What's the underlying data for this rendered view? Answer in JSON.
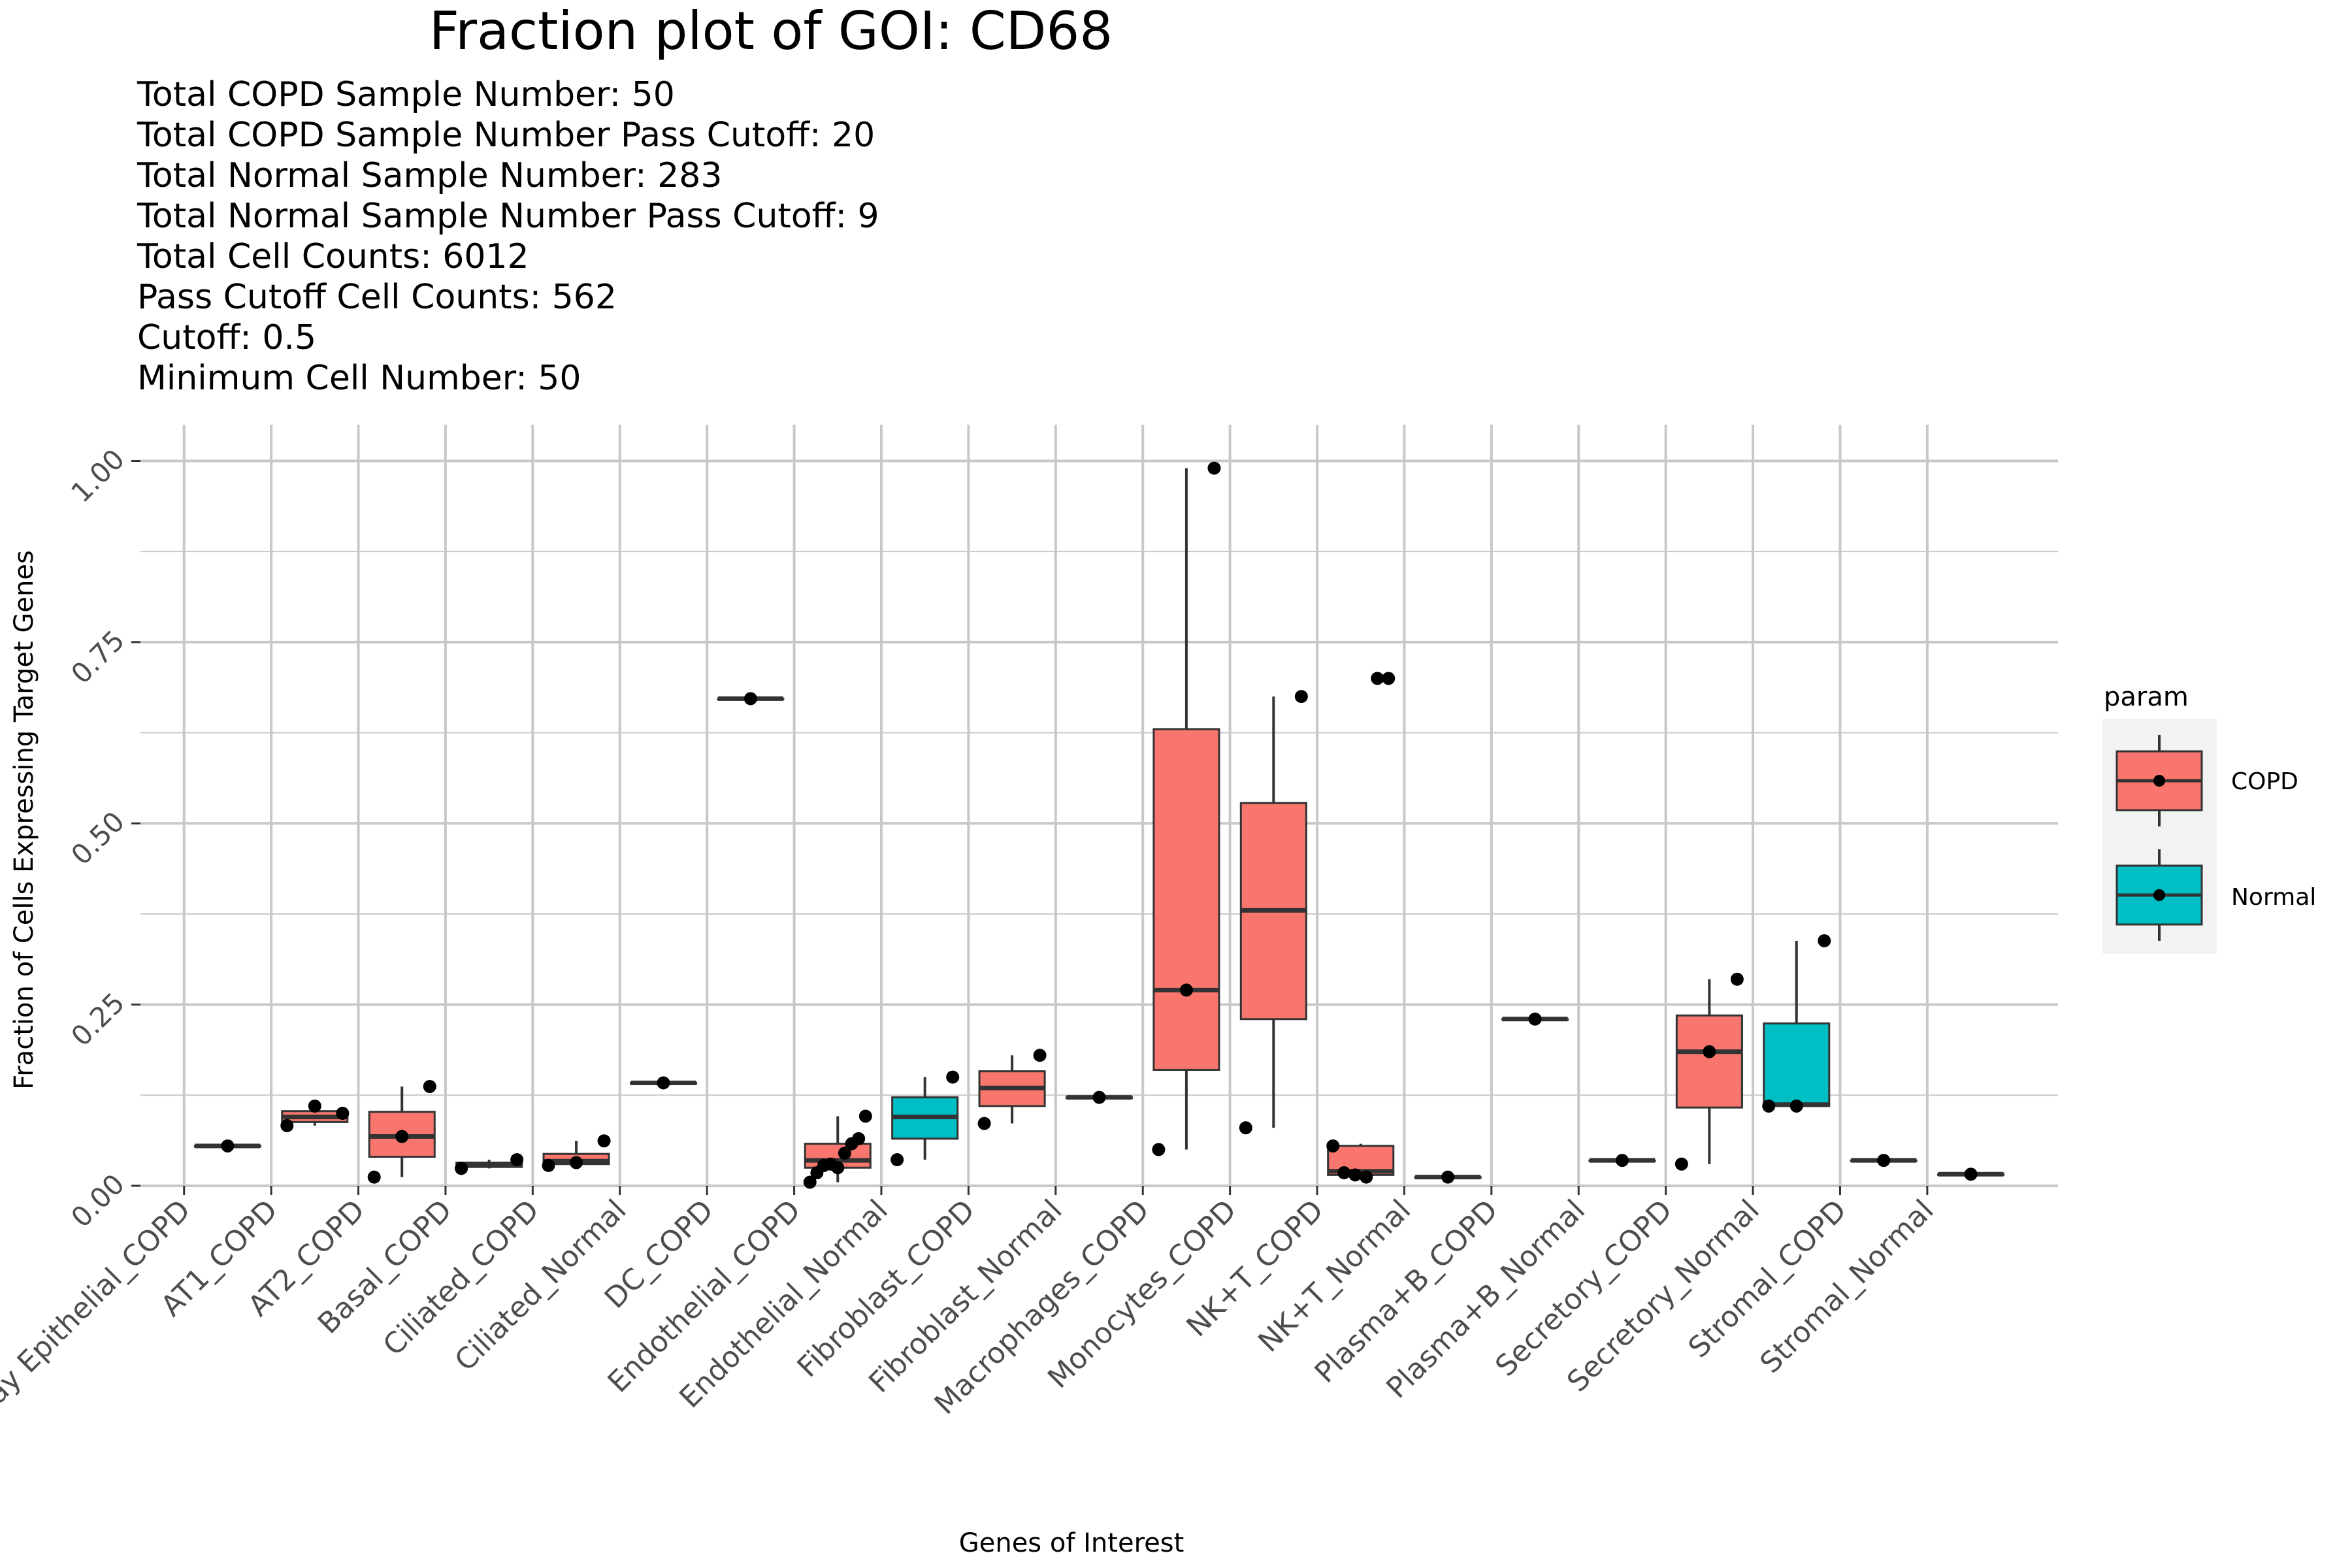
{
  "chart_data": {
    "type": "box",
    "title": "Fraction plot of GOI: CD68",
    "subtitle_lines": [
      "Total COPD Sample Number: 50",
      "Total COPD Sample Number Pass Cutoff: 20",
      "Total Normal Sample Number: 283",
      "Total Normal Sample Number Pass Cutoff: 9",
      "Total Cell Counts: 6012",
      "Pass Cutoff Cell Counts: 562",
      "Cutoff: 0.5",
      "Minimum Cell Number: 50"
    ],
    "xlabel": "Genes of Interest",
    "ylabel": "Fraction of Cells Expressing Target Genes",
    "ylim": [
      0,
      1.05
    ],
    "y_ticks": [
      "0.00",
      "0.25",
      "0.50",
      "0.75",
      "1.00"
    ],
    "y_tick_values": [
      0,
      0.25,
      0.5,
      0.75,
      1.0
    ],
    "legend": {
      "title": "param",
      "position": "right",
      "entries": [
        "COPD",
        "Normal"
      ]
    },
    "colors": {
      "COPD": "#F8766D",
      "Normal": "#00BFC4",
      "line": "#333333",
      "grid": "#C8C8C8",
      "point": "#000000"
    },
    "categories": [
      "Airway Epithelial_COPD",
      "AT1_COPD",
      "AT2_COPD",
      "Basal_COPD",
      "Ciliated_COPD",
      "Ciliated_Normal",
      "DC_COPD",
      "Endothelial_COPD",
      "Endothelial_Normal",
      "Fibroblast_COPD",
      "Fibroblast_Normal",
      "Macrophages_COPD",
      "Monocytes_COPD",
      "NK+T_COPD",
      "NK+T_Normal",
      "Plasma+B_COPD",
      "Plasma+B_Normal",
      "Secretory_COPD",
      "Secretory_Normal",
      "Stromal_COPD",
      "Stromal_Normal"
    ],
    "boxes": [
      {
        "pos": 1.5,
        "group": "COPD",
        "stats": [
          0.055,
          0.055,
          0.055,
          0.055,
          0.055
        ],
        "points": [
          0.055
        ]
      },
      {
        "pos": 2.5,
        "group": "COPD",
        "stats": [
          0.083,
          0.088,
          0.095,
          0.103,
          0.11
        ],
        "points": [
          0.083,
          0.11,
          0.1
        ]
      },
      {
        "pos": 3.5,
        "group": "COPD",
        "stats": [
          0.012,
          0.04,
          0.068,
          0.102,
          0.137
        ],
        "points": [
          0.012,
          0.068,
          0.137
        ]
      },
      {
        "pos": 4.5,
        "group": "COPD",
        "stats": [
          0.024,
          0.026,
          0.029,
          0.032,
          0.036
        ],
        "points": [
          0.024,
          0.036
        ]
      },
      {
        "pos": 5.5,
        "group": "COPD",
        "stats": [
          0.028,
          0.03,
          0.034,
          0.044,
          0.062
        ],
        "points": [
          0.028,
          0.032,
          0.062
        ]
      },
      {
        "pos": 6.5,
        "group": "COPD",
        "stats": [
          0.142,
          0.142,
          0.142,
          0.142,
          0.142
        ],
        "points": [
          0.142
        ]
      },
      {
        "pos": 7.5,
        "group": "COPD",
        "stats": [
          0.672,
          0.672,
          0.672,
          0.672,
          0.672
        ],
        "points": [
          0.672
        ]
      },
      {
        "pos": 8.5,
        "group": "COPD",
        "stats": [
          0.005,
          0.025,
          0.035,
          0.058,
          0.096
        ],
        "points": [
          0.005,
          0.018,
          0.028,
          0.03,
          0.025,
          0.045,
          0.058,
          0.065,
          0.096
        ]
      },
      {
        "pos": 9.5,
        "group": "Normal",
        "stats": [
          0.036,
          0.065,
          0.095,
          0.122,
          0.15
        ],
        "points": [
          0.036,
          0.15
        ]
      },
      {
        "pos": 10.5,
        "group": "COPD",
        "stats": [
          0.086,
          0.11,
          0.135,
          0.158,
          0.18
        ],
        "points": [
          0.086,
          0.18
        ]
      },
      {
        "pos": 11.5,
        "group": "COPD",
        "stats": [
          0.122,
          0.122,
          0.122,
          0.122,
          0.122
        ],
        "points": [
          0.122
        ]
      },
      {
        "pos": 12.5,
        "group": "COPD",
        "stats": [
          0.05,
          0.16,
          0.27,
          0.63,
          0.99
        ],
        "points": [
          0.05,
          0.27,
          0.99
        ]
      },
      {
        "pos": 13.5,
        "group": "COPD",
        "stats": [
          0.08,
          0.23,
          0.38,
          0.528,
          0.675
        ],
        "points": [
          0.08,
          0.675
        ]
      },
      {
        "pos": 14.5,
        "group": "COPD",
        "stats": [
          0.01,
          0.015,
          0.02,
          0.055,
          0.058
        ],
        "points": [
          0.055,
          0.018,
          0.015,
          0.012,
          0.7,
          0.7
        ]
      },
      {
        "pos": 15.5,
        "group": "COPD",
        "stats": [
          0.012,
          0.012,
          0.012,
          0.012,
          0.012
        ],
        "points": [
          0.012
        ]
      },
      {
        "pos": 16.5,
        "group": "COPD",
        "stats": [
          0.23,
          0.23,
          0.23,
          0.23,
          0.23
        ],
        "points": [
          0.23
        ]
      },
      {
        "pos": 17.5,
        "group": "COPD",
        "stats": [
          0.035,
          0.035,
          0.035,
          0.035,
          0.035
        ],
        "points": [
          0.035
        ]
      },
      {
        "pos": 18.5,
        "group": "COPD",
        "stats": [
          0.03,
          0.108,
          0.185,
          0.235,
          0.285
        ],
        "points": [
          0.03,
          0.185,
          0.285
        ]
      },
      {
        "pos": 19.5,
        "group": "Normal",
        "stats": [
          0.108,
          0.11,
          0.112,
          0.224,
          0.338
        ],
        "points": [
          0.11,
          0.11,
          0.338
        ]
      },
      {
        "pos": 20.5,
        "group": "COPD",
        "stats": [
          0.035,
          0.035,
          0.035,
          0.035,
          0.035
        ],
        "points": [
          0.035
        ]
      },
      {
        "pos": 21.5,
        "group": "COPD",
        "stats": [
          0.016,
          0.016,
          0.016,
          0.016,
          0.016
        ],
        "points": [
          0.016
        ]
      }
    ]
  }
}
